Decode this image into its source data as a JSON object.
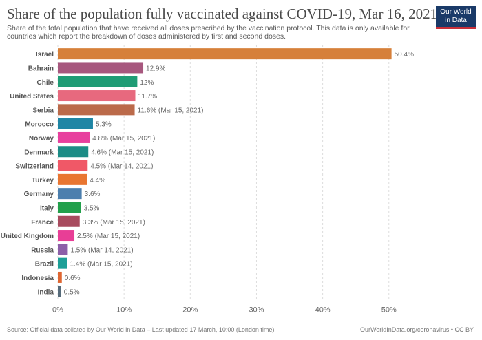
{
  "header": {
    "title": "Share of the population fully vaccinated against COVID-19, Mar 16, 2021",
    "subtitle": "Share of the total population that have received all doses prescribed by the vaccination protocol. This data is only available for countries which report the breakdown of doses administered by first and second doses."
  },
  "logo": {
    "line1": "Our World",
    "line2": "in Data"
  },
  "footer": {
    "source": "Source: Official data collated by Our World in Data – Last updated 17 March, 10:00 (London time)",
    "credit": "OurWorldInData.org/coronavirus • CC BY"
  },
  "chart_data": {
    "type": "bar",
    "orientation": "horizontal",
    "categories": [
      "Israel",
      "Bahrain",
      "Chile",
      "United States",
      "Serbia",
      "Morocco",
      "Norway",
      "Denmark",
      "Switzerland",
      "Turkey",
      "Germany",
      "Italy",
      "France",
      "United Kingdom",
      "Russia",
      "Brazil",
      "Indonesia",
      "India"
    ],
    "values": [
      50.4,
      12.9,
      12,
      11.7,
      11.6,
      5.3,
      4.8,
      4.6,
      4.5,
      4.4,
      3.6,
      3.5,
      3.3,
      2.5,
      1.5,
      1.4,
      0.6,
      0.5
    ],
    "data_labels": [
      "50.4%",
      "12.9%",
      "12%",
      "11.7%",
      "11.6% (Mar 15, 2021)",
      "5.3%",
      "4.8% (Mar 15, 2021)",
      "4.6% (Mar 15, 2021)",
      "4.5% (Mar 14, 2021)",
      "4.4%",
      "3.6%",
      "3.5%",
      "3.3% (Mar 15, 2021)",
      "2.5% (Mar 15, 2021)",
      "1.5% (Mar 14, 2021)",
      "1.4% (Mar 15, 2021)",
      "0.6%",
      "0.5%"
    ],
    "colors": [
      "#d6803a",
      "#a7577e",
      "#1f9c75",
      "#e7697e",
      "#bb6a4a",
      "#1f86a5",
      "#e8409e",
      "#1c8c86",
      "#f05867",
      "#e97631",
      "#4c7fae",
      "#22a04b",
      "#a84b5e",
      "#e83e96",
      "#8c5fa8",
      "#1d9f97",
      "#df6631",
      "#566b7a"
    ],
    "xlim": [
      0,
      52
    ],
    "xticks": [
      0,
      10,
      20,
      30,
      40,
      50
    ],
    "xtick_labels": [
      "0%",
      "10%",
      "20%",
      "30%",
      "40%",
      "50%"
    ],
    "grid": true,
    "legend": "none"
  }
}
